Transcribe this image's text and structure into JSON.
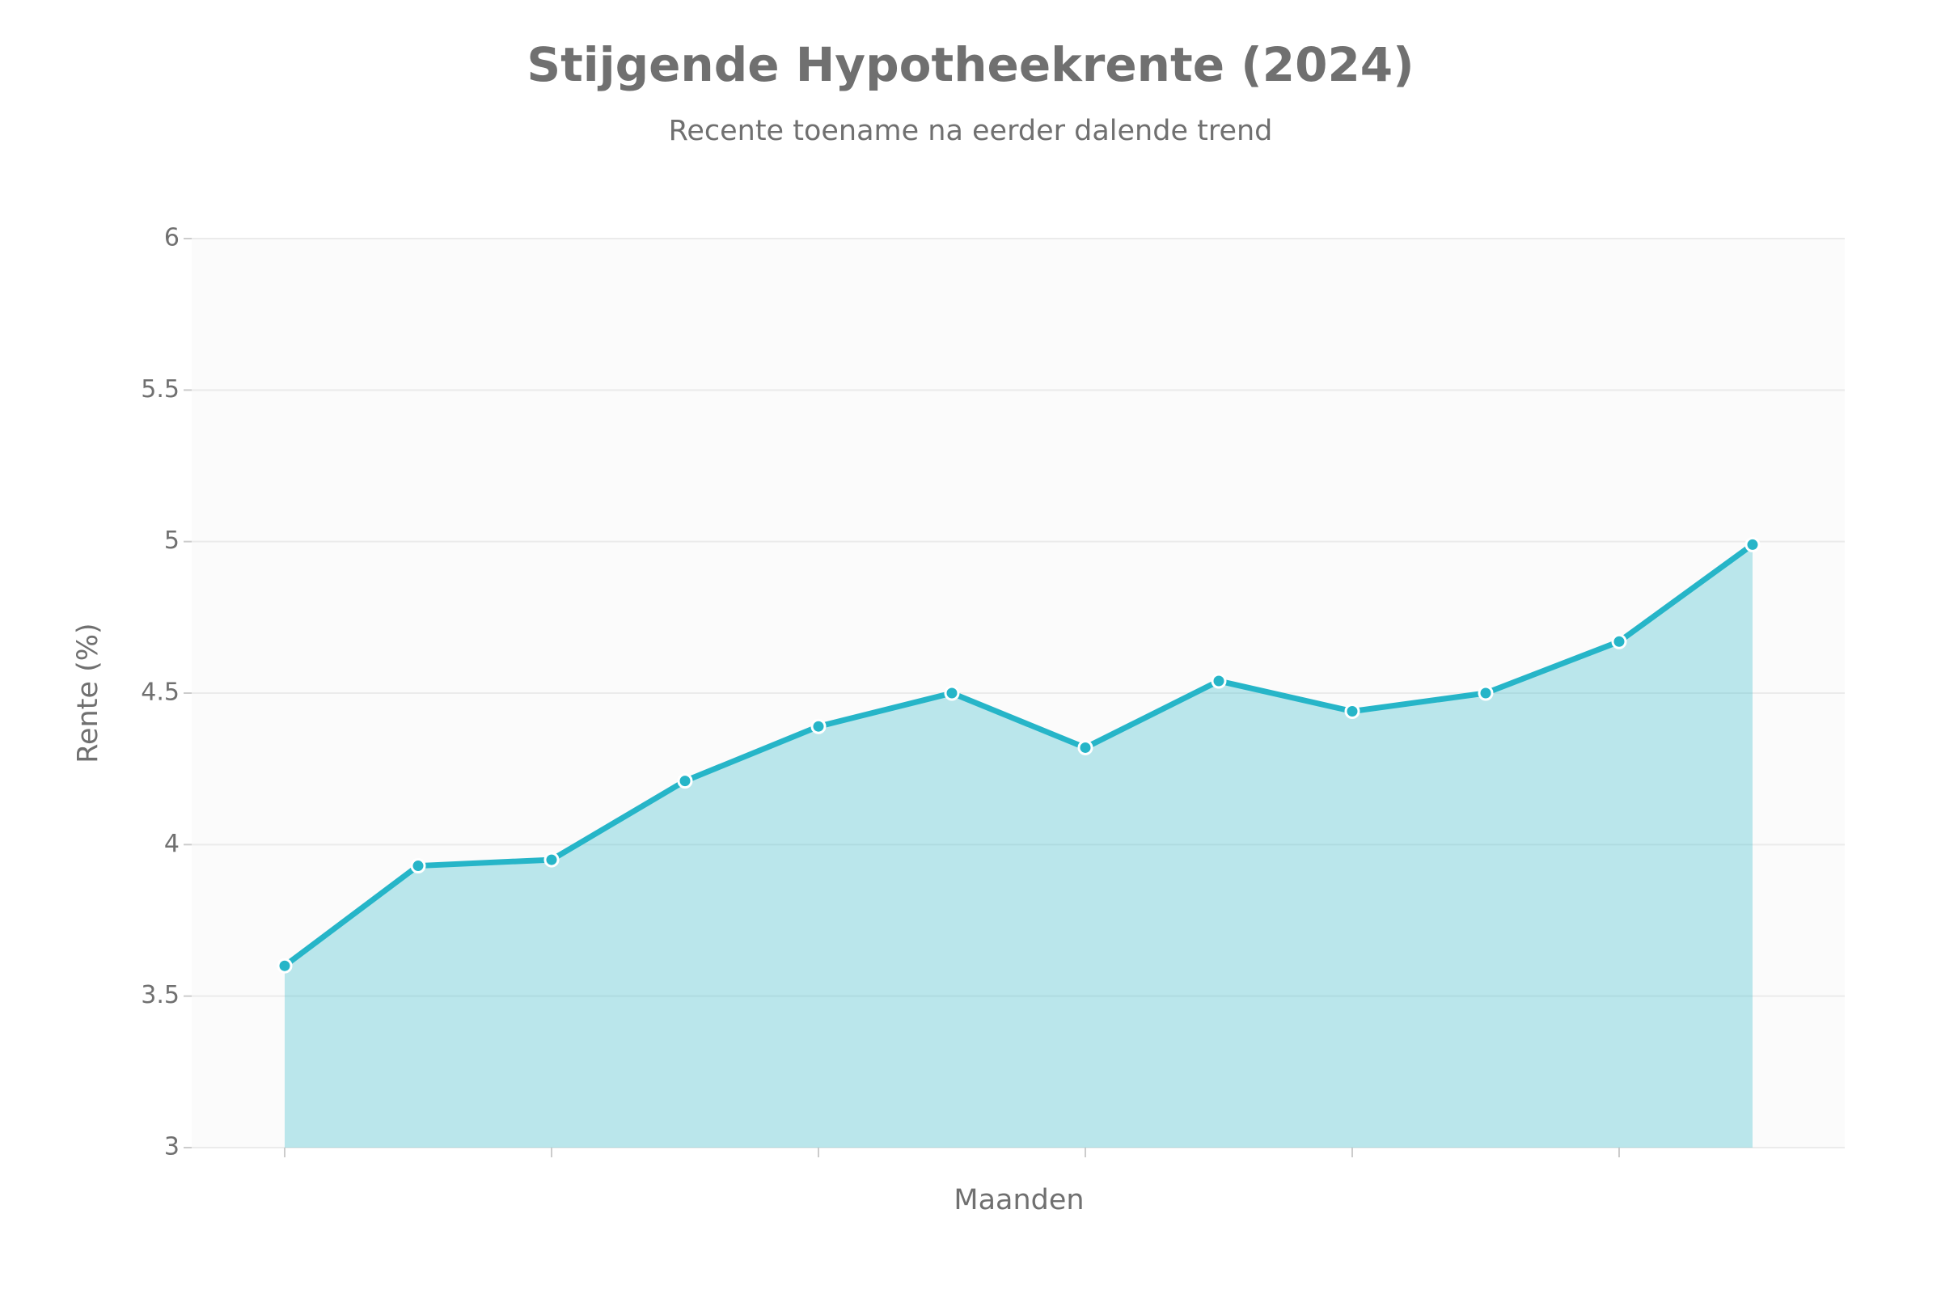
{
  "chart_data": {
    "type": "area",
    "title": "Stijgende Hypotheekrente (2024)",
    "subtitle": "Recente toename na eerder dalende trend",
    "x_label": "Maanden",
    "y_label": "Rente (%)",
    "categories": [
      null,
      null,
      null,
      null,
      null,
      null,
      null,
      null,
      null,
      null,
      null,
      null
    ],
    "values": [
      3.6,
      3.93,
      3.95,
      4.21,
      4.39,
      4.5,
      4.32,
      4.54,
      4.44,
      4.5,
      4.67,
      4.99
    ],
    "color": "#26b5c8",
    "ylim": [
      3,
      6
    ],
    "yticks": [
      3,
      3.5,
      4,
      4.5,
      5,
      5.5,
      6
    ],
    "grid": true
  }
}
